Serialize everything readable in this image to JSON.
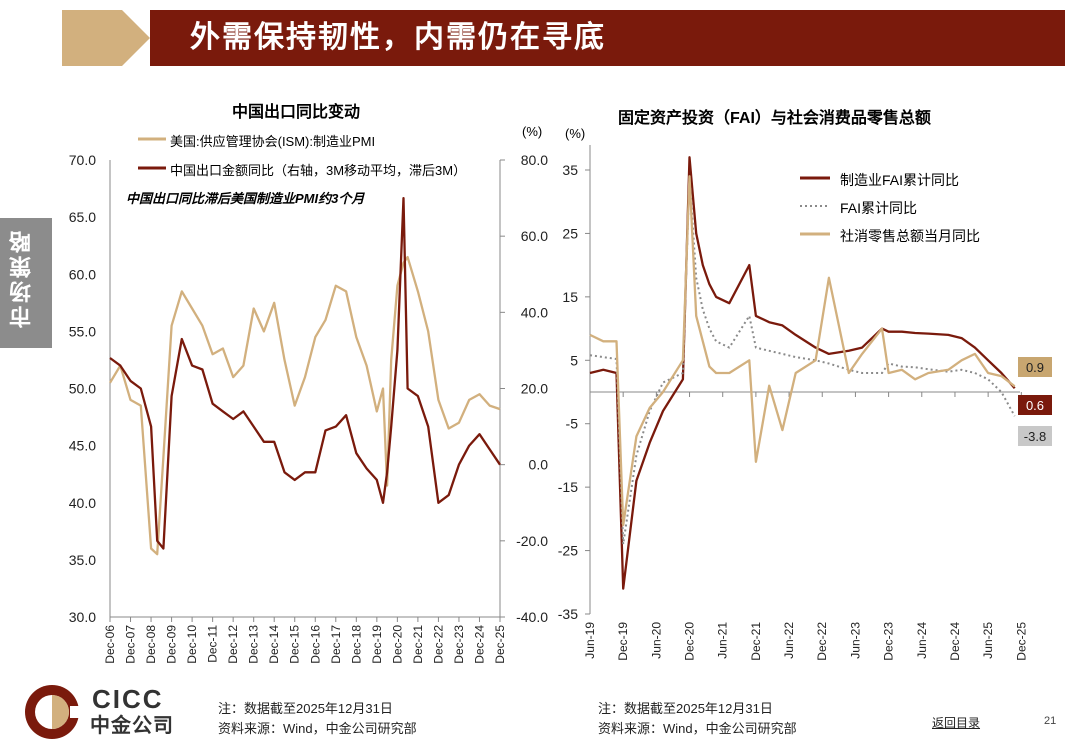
{
  "header": {
    "title": "外需保持韧性，内需仍在寻底",
    "side_tab": "市场策略"
  },
  "colors": {
    "dark_red": "#7a1a0c",
    "tan": "#d2b07e",
    "gray_dots": "#8a8a8a",
    "side_tab_gray": "#8c8c8c"
  },
  "footer": {
    "note_left": "注：数据截至2025年12月31日",
    "source_left": "资料来源：Wind，中金公司研究部",
    "note_right": "注：数据截至2025年12月31日",
    "source_right": "资料来源：Wind，中金公司研究部",
    "back_link": "返回目录",
    "page_number": "21",
    "logo_en": "CICC",
    "logo_cn": "中金公司"
  },
  "chart_data": [
    {
      "type": "line",
      "title": "中国出口同比变动",
      "annotation": "中国出口同比滞后美国制造业PMI约3个月",
      "x_ticks": [
        "Dec-06",
        "Dec-07",
        "Dec-08",
        "Dec-09",
        "Dec-10",
        "Dec-11",
        "Dec-12",
        "Dec-13",
        "Dec-14",
        "Dec-15",
        "Dec-16",
        "Dec-17",
        "Dec-18",
        "Dec-19",
        "Dec-20",
        "Dec-21",
        "Dec-22",
        "Dec-23",
        "Dec-24",
        "Dec-25"
      ],
      "y_left": {
        "min": 30,
        "max": 70,
        "ticks": [
          "70.0",
          "65.0",
          "60.0",
          "55.0",
          "50.0",
          "45.0",
          "40.0",
          "35.0",
          "30.0"
        ]
      },
      "y_right": {
        "unit": "(%)",
        "min": -40,
        "max": 80,
        "ticks": [
          "80.0",
          "60.0",
          "40.0",
          "20.0",
          "0.0",
          "-20.0",
          "-40.0"
        ]
      },
      "x": [
        2006.9,
        2007.4,
        2007.9,
        2008.4,
        2008.9,
        2009.2,
        2009.5,
        2009.9,
        2010.4,
        2010.9,
        2011.4,
        2011.9,
        2012.4,
        2012.9,
        2013.4,
        2013.9,
        2014.4,
        2014.9,
        2015.4,
        2015.9,
        2016.4,
        2016.9,
        2017.4,
        2017.9,
        2018.4,
        2018.9,
        2019.4,
        2019.9,
        2020.2,
        2020.4,
        2020.6,
        2020.9,
        2021.2,
        2021.4,
        2021.9,
        2022.4,
        2022.9,
        2023.4,
        2023.9,
        2024.4,
        2024.9,
        2025.4,
        2025.9
      ],
      "series": [
        {
          "name": "美国:供应管理协会(ISM):制造业PMI",
          "axis": "left",
          "color": "#d2b07e",
          "values": [
            50.5,
            52.0,
            49.0,
            48.5,
            36.0,
            35.5,
            44.0,
            55.5,
            58.5,
            57.0,
            55.5,
            53.0,
            53.5,
            51.0,
            52.0,
            57.0,
            55.0,
            57.5,
            52.5,
            48.5,
            51.0,
            54.5,
            56.0,
            59.0,
            58.5,
            54.5,
            52.0,
            48.0,
            50.0,
            41.5,
            52.5,
            59.0,
            61.0,
            61.5,
            58.5,
            55.0,
            49.0,
            46.5,
            47.0,
            49.0,
            49.5,
            48.5,
            48.2
          ]
        },
        {
          "name": "中国出口金额同比（右轴，3M移动平均，滞后3M）",
          "axis": "right",
          "color": "#7a1a0c",
          "values": [
            28,
            26,
            22,
            20,
            10,
            -20,
            -22,
            18,
            33,
            26,
            25,
            16,
            14,
            12,
            14,
            10,
            6,
            6,
            -2,
            -4,
            -2,
            -2,
            9,
            10,
            13,
            3,
            -1,
            -4,
            -10,
            -2,
            10,
            30,
            70,
            20,
            18,
            10,
            -10,
            -8,
            0,
            5,
            8,
            4,
            0
          ]
        }
      ]
    },
    {
      "type": "line",
      "title": "固定资产投资（FAI）与社会消费品零售总额",
      "y": {
        "unit": "(%)",
        "min": -35,
        "max": 35,
        "ticks": [
          "35",
          "25",
          "15",
          "5",
          "-5",
          "-15",
          "-25",
          "-35"
        ]
      },
      "x_ticks": [
        "Jun-19",
        "Dec-19",
        "Jun-20",
        "Dec-20",
        "Jun-21",
        "Dec-21",
        "Jun-22",
        "Dec-22",
        "Jun-23",
        "Dec-23",
        "Jun-24",
        "Dec-24",
        "Jun-25",
        "Dec-25"
      ],
      "x": [
        2019.5,
        2019.7,
        2019.9,
        2020.0,
        2020.2,
        2020.4,
        2020.6,
        2020.9,
        2021.0,
        2021.1,
        2021.2,
        2021.3,
        2021.4,
        2021.6,
        2021.9,
        2022.0,
        2022.2,
        2022.4,
        2022.6,
        2022.9,
        2023.1,
        2023.4,
        2023.6,
        2023.9,
        2024.0,
        2024.2,
        2024.4,
        2024.6,
        2024.9,
        2025.1,
        2025.3,
        2025.5,
        2025.7,
        2025.9
      ],
      "series": [
        {
          "name": "制造业FAI累计同比",
          "color": "#7a1a0c",
          "end_label": "0.6",
          "values": [
            3,
            3.5,
            3,
            -31,
            -14,
            -8,
            -3,
            2,
            37,
            25,
            20,
            17,
            15,
            14,
            20,
            12,
            11,
            10.5,
            9,
            7,
            6,
            6.5,
            7,
            10,
            9.5,
            9.5,
            9.3,
            9.2,
            9,
            8.5,
            7,
            5,
            3,
            0.6
          ]
        },
        {
          "name": "FAI累计同比",
          "color": "#8a8a8a",
          "dashed": true,
          "end_label": "-3.8",
          "values": [
            5.8,
            5.5,
            5.2,
            -24,
            -10,
            -3,
            1.5,
            3,
            34,
            18,
            13,
            10,
            8,
            7,
            12,
            7,
            6.5,
            6,
            5.5,
            5,
            4.5,
            3.5,
            3,
            3,
            4.5,
            4,
            3.9,
            3.6,
            3.2,
            3.5,
            3,
            2,
            0,
            -3.8
          ]
        },
        {
          "name": "社消零售总额当月同比",
          "color": "#d2b07e",
          "end_label": "0.9",
          "values": [
            9,
            8,
            8,
            -21,
            -7,
            -2.5,
            0,
            5,
            34,
            12,
            8,
            4,
            3,
            3,
            5,
            -11,
            1,
            -6,
            3,
            5,
            18,
            3,
            6,
            10,
            3,
            3.5,
            2,
            3,
            3.5,
            5,
            6,
            3,
            2.5,
            0.9
          ]
        }
      ]
    }
  ]
}
